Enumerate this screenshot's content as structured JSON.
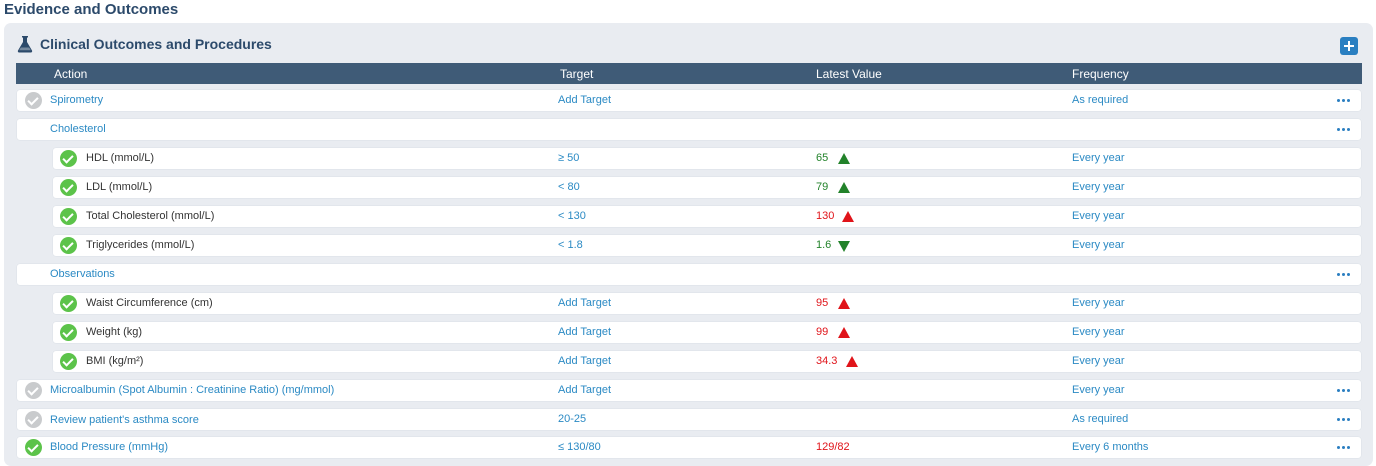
{
  "page": {
    "title": "Evidence and Outcomes"
  },
  "panel": {
    "title": "Clinical Outcomes and Procedures",
    "icon": "flask-icon",
    "add_icon": "plus-icon"
  },
  "table": {
    "headers": {
      "action": "Action",
      "target": "Target",
      "latest_value": "Latest Value",
      "frequency": "Frequency"
    }
  },
  "rows": [
    {
      "action": "Spirometry",
      "target": "Add Target",
      "value": "",
      "frequency": "As required",
      "status": "pending"
    },
    {
      "action": "Cholesterol",
      "target": "",
      "value": "",
      "frequency": "",
      "status": "group"
    },
    {
      "action": "HDL (mmol/L)",
      "target": "≥ 50",
      "value": "65",
      "frequency": "Every year",
      "status": "done",
      "trend": "up",
      "color": "#22822a"
    },
    {
      "action": "LDL (mmol/L)",
      "target": "< 80",
      "value": "79",
      "frequency": "Every year",
      "status": "done",
      "trend": "up",
      "color": "#22822a"
    },
    {
      "action": "Total Cholesterol (mmol/L)",
      "target": "< 130",
      "value": "130",
      "frequency": "Every year",
      "status": "done",
      "trend": "up",
      "color": "#e0141a"
    },
    {
      "action": "Triglycerides (mmol/L)",
      "target": "< 1.8",
      "value": "1.6",
      "frequency": "Every year",
      "status": "done",
      "trend": "down",
      "color": "#22822a"
    },
    {
      "action": "Observations",
      "target": "",
      "value": "",
      "frequency": "",
      "status": "group"
    },
    {
      "action": "Waist Circumference (cm)",
      "target": "Add Target",
      "value": "95",
      "frequency": "Every year",
      "status": "done",
      "trend": "up",
      "color": "#e0141a"
    },
    {
      "action": "Weight (kg)",
      "target": "Add Target",
      "value": "99",
      "frequency": "Every year",
      "status": "done",
      "trend": "up",
      "color": "#e0141a"
    },
    {
      "action": "BMI (kg/m²)",
      "target": "Add Target",
      "value": "34.3",
      "frequency": "Every year",
      "status": "done",
      "trend": "up",
      "color": "#e0141a"
    },
    {
      "action": "Microalbumin (Spot Albumin : Creatinine Ratio) (mg/mmol)",
      "target": "Add Target",
      "value": "",
      "frequency": "Every year",
      "status": "pending"
    },
    {
      "action": "Review patient's asthma score",
      "target": "20-25",
      "value": "",
      "frequency": "As required",
      "status": "pending"
    },
    {
      "action": "Blood Pressure (mmHg)",
      "target": "≤ 130/80",
      "value": "129/82",
      "frequency": "Every 6 months",
      "status": "done",
      "color": "#e0141a"
    }
  ]
}
